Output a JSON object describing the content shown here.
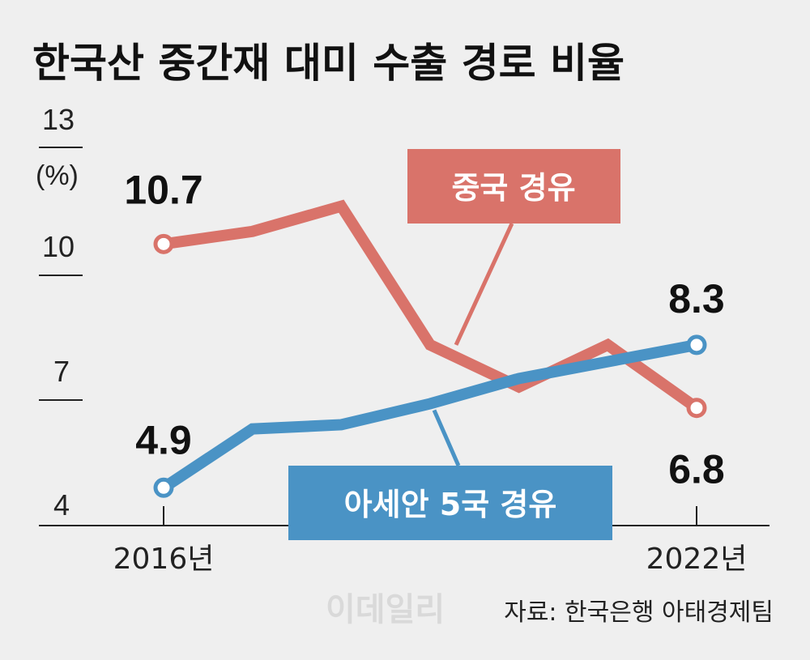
{
  "chart_data": {
    "type": "line",
    "title": "한국산 중간재 대미 수출 경로 비율",
    "y_unit": "(%)",
    "y_ticks": [
      "13",
      "10",
      "7",
      "4"
    ],
    "ylim": [
      4,
      13
    ],
    "x": [
      2016,
      2017,
      2018,
      2019,
      2020,
      2021,
      2022
    ],
    "x_tick_labels": [
      "2016년",
      "2022년"
    ],
    "series": [
      {
        "name": "중국 경유",
        "color": "#d9736a",
        "values": [
          10.7,
          11.0,
          11.6,
          8.3,
          7.3,
          8.3,
          6.8
        ],
        "labels": [
          {
            "text": "10.7",
            "index": 0
          },
          {
            "text": "6.8",
            "index": 6
          }
        ]
      },
      {
        "name": "아세안 5국 경유",
        "color": "#4a93c5",
        "values": [
          4.9,
          6.3,
          6.4,
          6.9,
          7.5,
          7.9,
          8.3
        ],
        "labels": [
          {
            "text": "4.9",
            "index": 0
          },
          {
            "text": "8.3",
            "index": 6
          }
        ]
      }
    ],
    "grid": false,
    "source": "자료: 한국은행 아태경제팀",
    "watermark": "이데일리"
  }
}
